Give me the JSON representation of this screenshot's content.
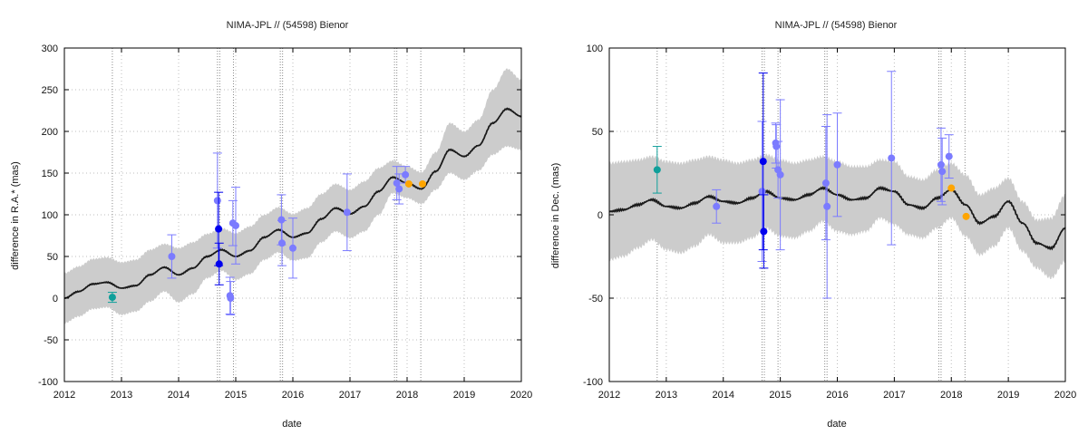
{
  "colors": {
    "band": "#cccccc",
    "model_line": "#1a1a1a",
    "frame": "#000000",
    "grid": "#bdbdbd",
    "obs_generic": "#7b7bff",
    "obs_bold": "#0000ee",
    "obs_teal": "#0f9f9a",
    "obs_recent": "#ffa500"
  },
  "chart_data": [
    {
      "type": "scatter",
      "title": "NIMA-JPL // (54598) Bienor",
      "xlabel": "date",
      "ylabel": "difference in R.A.* (mas)",
      "xlim": [
        2012,
        2020
      ],
      "ylim": [
        -100,
        300
      ],
      "xticks": [
        2012,
        2013,
        2014,
        2015,
        2016,
        2017,
        2018,
        2019,
        2020
      ],
      "yticks": [
        -100,
        -50,
        0,
        50,
        100,
        150,
        200,
        250,
        300
      ],
      "grid": "dotted",
      "vlines": [
        2012.84,
        2014.68,
        2014.72,
        2014.96,
        2015.78,
        2015.82,
        2017.78,
        2017.82,
        2018.24
      ],
      "model": {
        "t": [
          2012.0,
          2012.25,
          2012.5,
          2012.75,
          2013.0,
          2013.25,
          2013.5,
          2013.75,
          2014.0,
          2014.25,
          2014.5,
          2014.75,
          2015.0,
          2015.25,
          2015.5,
          2015.75,
          2016.0,
          2016.25,
          2016.5,
          2016.75,
          2017.0,
          2017.25,
          2017.5,
          2017.75,
          2018.0,
          2018.25,
          2018.5,
          2018.75,
          2019.0,
          2019.25,
          2019.5,
          2019.75,
          2020.0
        ],
        "value": [
          0,
          8,
          17,
          19,
          12,
          15,
          28,
          37,
          28,
          36,
          50,
          58,
          50,
          57,
          73,
          82,
          73,
          78,
          95,
          108,
          101,
          110,
          128,
          145,
          138,
          131,
          152,
          178,
          170,
          183,
          210,
          227,
          218
        ],
        "upper": [
          30,
          38,
          47,
          49,
          43,
          46,
          58,
          65,
          60,
          67,
          77,
          84,
          78,
          86,
          100,
          109,
          101,
          108,
          125,
          137,
          130,
          140,
          156,
          165,
          158,
          151,
          175,
          210,
          200,
          214,
          250,
          275,
          262
        ],
        "lower": [
          -30,
          -22,
          -13,
          -11,
          -20,
          -16,
          -4,
          8,
          -5,
          5,
          24,
          33,
          22,
          29,
          46,
          55,
          45,
          48,
          67,
          80,
          72,
          80,
          100,
          126,
          120,
          113,
          130,
          150,
          142,
          153,
          172,
          182,
          178
        ]
      },
      "series": [
        {
          "name": "",
          "color": "teal",
          "points": [
            {
              "x": 2012.84,
              "y": 1,
              "err": 6
            }
          ]
        },
        {
          "name": "",
          "color": "generic",
          "points": [
            {
              "x": 2013.88,
              "y": 50,
              "err": 26
            },
            {
              "x": 2014.68,
              "y": 117,
              "err": 57
            },
            {
              "x": 2014.9,
              "y": 3,
              "err": 22
            },
            {
              "x": 2014.91,
              "y": 0,
              "err": 20
            },
            {
              "x": 2014.95,
              "y": 90,
              "err": 27
            },
            {
              "x": 2015.0,
              "y": 87,
              "err": 46
            },
            {
              "x": 2015.8,
              "y": 94,
              "err": 30
            },
            {
              "x": 2015.81,
              "y": 66,
              "err": 27
            },
            {
              "x": 2016.0,
              "y": 60,
              "err": 36
            },
            {
              "x": 2016.95,
              "y": 103,
              "err": 46
            },
            {
              "x": 2017.82,
              "y": 138,
              "err": 20
            },
            {
              "x": 2017.86,
              "y": 131,
              "err": 18
            },
            {
              "x": 2017.97,
              "y": 148,
              "err": 10
            }
          ]
        },
        {
          "name": "",
          "color": "bold",
          "points": [
            {
              "x": 2014.7,
              "y": 83,
              "err": 44
            },
            {
              "x": 2014.71,
              "y": 41,
              "err": 25
            }
          ]
        },
        {
          "name": "",
          "color": "recent",
          "points": [
            {
              "x": 2018.03,
              "y": 137,
              "err": 0
            },
            {
              "x": 2018.27,
              "y": 137,
              "err": 0
            }
          ]
        }
      ]
    },
    {
      "type": "scatter",
      "title": "NIMA-JPL // (54598) Bienor",
      "xlabel": "date",
      "ylabel": "difference in Dec. (mas)",
      "xlim": [
        2012,
        2020
      ],
      "ylim": [
        -100,
        100
      ],
      "xticks": [
        2012,
        2013,
        2014,
        2015,
        2016,
        2017,
        2018,
        2019,
        2020
      ],
      "yticks": [
        -100,
        -50,
        0,
        50,
        100
      ],
      "grid": "dotted",
      "vlines": [
        2012.84,
        2014.68,
        2014.72,
        2014.96,
        2015.78,
        2015.82,
        2017.78,
        2017.82,
        2018.24
      ],
      "model": {
        "t": [
          2012.0,
          2012.25,
          2012.5,
          2012.75,
          2013.0,
          2013.25,
          2013.5,
          2013.75,
          2014.0,
          2014.25,
          2014.5,
          2014.75,
          2015.0,
          2015.25,
          2015.5,
          2015.75,
          2016.0,
          2016.25,
          2016.5,
          2016.75,
          2017.0,
          2017.25,
          2017.5,
          2017.75,
          2018.0,
          2018.25,
          2018.5,
          2018.75,
          2019.0,
          2019.25,
          2019.5,
          2019.75,
          2020.0
        ],
        "value": [
          2,
          3,
          6,
          9,
          5,
          4,
          7,
          11,
          8,
          7,
          10,
          14,
          10,
          9,
          12,
          16,
          12,
          9,
          10,
          16,
          14,
          6,
          4,
          10,
          15,
          6,
          -5,
          -1,
          8,
          -5,
          -17,
          -20,
          -8
        ],
        "upper": [
          31,
          32,
          33,
          35,
          32,
          31,
          33,
          35,
          33,
          31,
          33,
          36,
          33,
          31,
          33,
          35,
          32,
          29,
          29,
          33,
          32,
          23,
          21,
          27,
          31,
          24,
          12,
          16,
          22,
          8,
          -3,
          -2,
          12
        ],
        "lower": [
          -27,
          -25,
          -20,
          -15,
          -21,
          -23,
          -19,
          -12,
          -17,
          -17,
          -14,
          -8,
          -13,
          -14,
          -10,
          -4,
          -10,
          -12,
          -10,
          -2,
          -6,
          -12,
          -14,
          -8,
          -2,
          -13,
          -24,
          -19,
          -8,
          -22,
          -32,
          -38,
          -28
        ]
      },
      "series": [
        {
          "name": "",
          "color": "teal",
          "points": [
            {
              "x": 2012.84,
              "y": 27,
              "err": 14
            }
          ]
        },
        {
          "name": "",
          "color": "generic",
          "points": [
            {
              "x": 2013.88,
              "y": 5,
              "err": 10
            },
            {
              "x": 2014.68,
              "y": 14,
              "err": 42
            },
            {
              "x": 2014.92,
              "y": 43,
              "err": 12
            },
            {
              "x": 2014.93,
              "y": 41,
              "err": 13
            },
            {
              "x": 2014.96,
              "y": 27,
              "err": 17
            },
            {
              "x": 2015.0,
              "y": 24,
              "err": 45
            },
            {
              "x": 2015.8,
              "y": 19,
              "err": 34
            },
            {
              "x": 2015.82,
              "y": 5,
              "err": 55
            },
            {
              "x": 2016.0,
              "y": 30,
              "err": 31
            },
            {
              "x": 2016.95,
              "y": 34,
              "err": 52
            },
            {
              "x": 2017.82,
              "y": 30,
              "err": 22
            },
            {
              "x": 2017.84,
              "y": 26,
              "err": 20
            },
            {
              "x": 2017.96,
              "y": 35,
              "err": 13
            }
          ]
        },
        {
          "name": "",
          "color": "bold",
          "points": [
            {
              "x": 2014.7,
              "y": 32,
              "err": 53
            },
            {
              "x": 2014.71,
              "y": -10,
              "err": 22
            }
          ]
        },
        {
          "name": "",
          "color": "recent",
          "points": [
            {
              "x": 2018.0,
              "y": 16,
              "err": 0
            },
            {
              "x": 2018.26,
              "y": -1,
              "err": 0
            }
          ]
        }
      ]
    }
  ]
}
